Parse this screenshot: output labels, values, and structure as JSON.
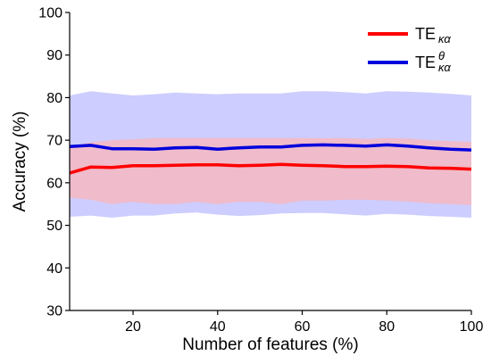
{
  "chart_data": {
    "type": "line",
    "title": "",
    "xlabel": "Number of features (%)",
    "ylabel": "Accuracy (%)",
    "xlim": [
      5,
      100
    ],
    "ylim": [
      30,
      100
    ],
    "xticks": [
      20,
      40,
      60,
      80,
      100
    ],
    "yticks": [
      30,
      40,
      50,
      60,
      70,
      80,
      90,
      100
    ],
    "xtick_labels": [
      "20",
      "40",
      "60",
      "80",
      "100"
    ],
    "ytick_labels": [
      "30",
      "40",
      "50",
      "60",
      "70",
      "80",
      "90",
      "100"
    ],
    "grid": false,
    "legend_position": "top-right",
    "x": [
      5,
      10,
      15,
      20,
      25,
      30,
      35,
      40,
      45,
      50,
      55,
      60,
      65,
      70,
      75,
      80,
      85,
      90,
      95,
      100
    ],
    "series": [
      {
        "name": "TE",
        "name_sub": "κα",
        "name_sup": "",
        "color": "#ff0000",
        "band_color": "#ffb3b3",
        "values": [
          62.3,
          63.7,
          63.6,
          64.0,
          64.0,
          64.1,
          64.2,
          64.2,
          64.0,
          64.1,
          64.3,
          64.1,
          64.0,
          63.8,
          63.8,
          63.9,
          63.8,
          63.5,
          63.4,
          63.2
        ],
        "lower": [
          56.5,
          56.0,
          55.0,
          55.5,
          55.0,
          55.0,
          55.5,
          55.0,
          55.5,
          55.5,
          55.0,
          55.8,
          55.8,
          56.0,
          56.0,
          55.8,
          55.6,
          55.2,
          55.0,
          54.8
        ],
        "upper": [
          68.5,
          69.5,
          70.0,
          70.2,
          70.5,
          70.5,
          70.5,
          70.5,
          70.5,
          70.5,
          70.5,
          70.5,
          70.5,
          70.5,
          70.3,
          70.5,
          70.4,
          70.0,
          69.8,
          69.6
        ]
      },
      {
        "name": "TE",
        "name_sub": "κα",
        "name_sup": "θ",
        "color": "#0000dd",
        "band_color": "#b8b8ff",
        "values": [
          68.5,
          68.8,
          68.0,
          68.0,
          67.9,
          68.2,
          68.3,
          67.9,
          68.2,
          68.4,
          68.4,
          68.8,
          68.9,
          68.8,
          68.6,
          68.9,
          68.6,
          68.2,
          67.9,
          67.7
        ],
        "lower": [
          52.0,
          52.3,
          51.8,
          52.3,
          52.3,
          52.8,
          53.0,
          52.5,
          52.2,
          52.4,
          52.8,
          52.9,
          52.9,
          52.6,
          52.3,
          52.7,
          52.5,
          52.2,
          52.0,
          51.8
        ],
        "upper": [
          80.5,
          81.5,
          81.0,
          80.5,
          80.8,
          81.2,
          81.0,
          80.8,
          81.0,
          81.0,
          81.0,
          81.5,
          81.5,
          81.3,
          81.0,
          81.5,
          81.4,
          81.2,
          80.9,
          80.5
        ]
      }
    ]
  }
}
